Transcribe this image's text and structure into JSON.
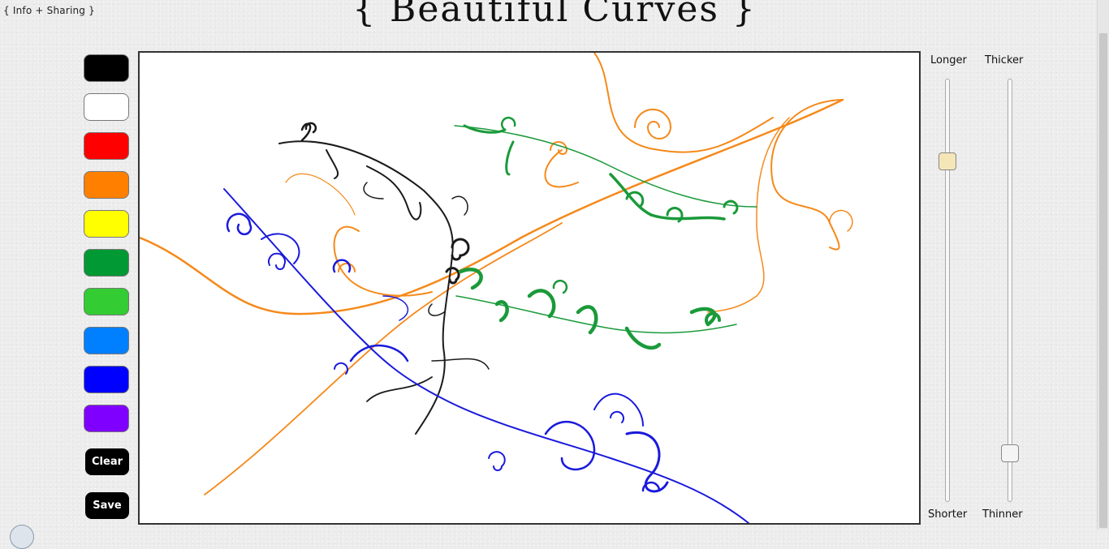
{
  "header": {
    "info_link": "{ Info + Sharing }",
    "title": "{ Beautiful Curves }"
  },
  "palette": {
    "swatches": [
      {
        "name": "black",
        "color": "#000000"
      },
      {
        "name": "white",
        "color": "#ffffff"
      },
      {
        "name": "red",
        "color": "#ff0000"
      },
      {
        "name": "orange",
        "color": "#ff8000"
      },
      {
        "name": "yellow",
        "color": "#ffff00"
      },
      {
        "name": "dark-green",
        "color": "#009933"
      },
      {
        "name": "light-green",
        "color": "#33cc33"
      },
      {
        "name": "sky-blue",
        "color": "#0080ff"
      },
      {
        "name": "blue",
        "color": "#0000ff"
      },
      {
        "name": "purple",
        "color": "#8000ff"
      }
    ]
  },
  "actions": {
    "clear_label": "Clear",
    "save_label": "Save"
  },
  "sliders": {
    "length": {
      "top_label": "Longer",
      "bottom_label": "Shorter",
      "value": 0.82,
      "thumb_color": "#f5e6b8"
    },
    "thickness": {
      "top_label": "Thicker",
      "bottom_label": "Thinner",
      "value": 0.1,
      "thumb_color": "#f4f4f4"
    }
  },
  "drawing": {
    "stroke_colors": {
      "orange": "#f5891a",
      "black": "#1a1a1a",
      "green": "#1a9a3a",
      "blue": "#1a1adc"
    }
  }
}
